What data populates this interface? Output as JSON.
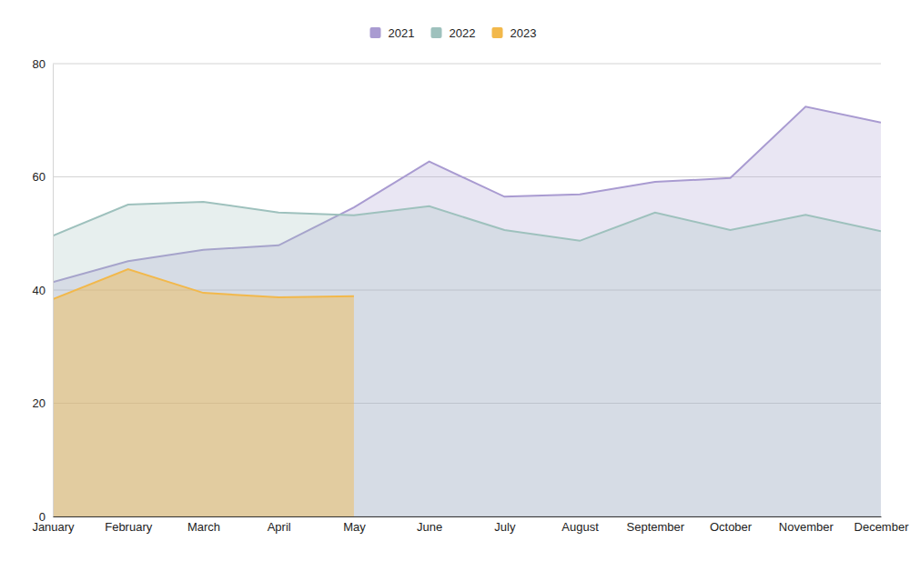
{
  "chart_data": {
    "type": "area",
    "categories": [
      "January",
      "February",
      "March",
      "April",
      "May",
      "June",
      "July",
      "August",
      "September",
      "October",
      "November",
      "December"
    ],
    "series": [
      {
        "name": "2021",
        "color": "#a99bd1",
        "values": [
          41.4,
          45.1,
          47.1,
          47.9,
          54.6,
          62.7,
          56.5,
          56.9,
          59.1,
          59.8,
          72.4,
          69.6
        ]
      },
      {
        "name": "2022",
        "color": "#9ec1bd",
        "values": [
          49.6,
          55.1,
          55.6,
          53.7,
          53.2,
          54.8,
          50.6,
          48.7,
          53.7,
          50.6,
          53.3,
          50.4
        ]
      },
      {
        "name": "2023",
        "color": "#f2b84b",
        "values": [
          38.4,
          43.7,
          39.5,
          38.7,
          38.9,
          null,
          null,
          null,
          null,
          null,
          null,
          null
        ]
      }
    ],
    "ylim": [
      0,
      80
    ],
    "yticks": [
      0,
      20,
      40,
      60,
      80
    ],
    "grid": true,
    "legend": "top"
  }
}
